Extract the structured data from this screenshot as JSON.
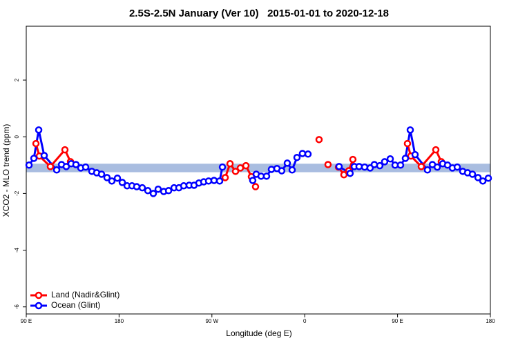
{
  "chart_data": {
    "type": "scatter",
    "title": "2.5S-2.5N January (Ver 10)   2015-01-01 to 2020-12-18",
    "x_label": "Longitude (deg E)",
    "y_label": "XCO2 - MLO trend (ppm)",
    "xlim": [
      90,
      540
    ],
    "ylim": [
      -6.25,
      3.9
    ],
    "xticks": [
      {
        "value": 90,
        "label": "90 E"
      },
      180,
      {
        "value": 270,
        "label": "90 W"
      },
      {
        "value": 360,
        "label": "0"
      },
      {
        "value": 450,
        "label": "90 E"
      },
      {
        "value": 540,
        "label": "180"
      }
    ],
    "yticks": [
      -6,
      -4,
      -2,
      0,
      2
    ],
    "band": {
      "ymin": -1.25,
      "ymax": -0.95,
      "color": "#a9bde0"
    },
    "legend": "bottom-left",
    "series": [
      {
        "name": "Land (Nadir&Glint)",
        "color": "#ff0000",
        "x": [
          99.4,
          102.7,
          113.4,
          127.5,
          132.9,
          null,
          282.9,
          287.6,
          292.9,
          297.6,
          303.0,
          308.3,
          312.3,
          null,
          373.9,
          null,
          382.6,
          null,
          392.7,
          398.0,
          402.7,
          406.7,
          null,
          459.6,
          462.9,
          473.0,
          487.1,
          492.4
        ],
        "values": [
          -0.24,
          -0.68,
          -1.05,
          -0.46,
          -0.88,
          null,
          -1.44,
          -0.95,
          -1.22,
          -1.1,
          -1.02,
          -1.41,
          -1.76,
          null,
          -0.1,
          null,
          -0.98,
          null,
          -1.07,
          -1.34,
          -1.2,
          -0.8,
          null,
          -0.24,
          -0.68,
          -1.05,
          -0.46,
          -0.88
        ]
      },
      {
        "name": "Ocean (Glint)",
        "color": "#0000ff",
        "x": [
          92.7,
          97.4,
          102.1,
          107.4,
          119.5,
          124.2,
          128.8,
          133.5,
          138.2,
          142.9,
          147.6,
          153.6,
          158.3,
          163.0,
          168.3,
          173.0,
          178.4,
          183.1,
          187.8,
          192.5,
          197.1,
          202.5,
          207.9,
          213.2,
          217.9,
          223.3,
          228.0,
          233.3,
          238.0,
          242.7,
          248.0,
          252.7,
          257.4,
          262.1,
          266.8,
          272.1,
          277.5,
          280.2,
          null,
          309.6,
          313.0,
          317.7,
          323.0,
          327.7,
          333.1,
          337.7,
          343.1,
          347.8,
          352.5,
          357.8,
          363.2,
          null,
          393.3,
          404.0,
          408.1,
          412.7,
          418.1,
          423.4,
          427.5,
          432.8,
          437.5,
          442.9,
          447.6,
          452.9,
          457.6,
          462.3,
          467.0,
          479.0,
          483.8,
          488.5,
          493.8,
          498.5,
          503.2,
          507.9,
          513.2,
          517.9,
          522.6,
          528.0,
          532.7,
          538.0
        ],
        "values": [
          -1.0,
          -0.76,
          0.24,
          -0.66,
          -1.17,
          -0.98,
          -1.05,
          -0.95,
          -0.98,
          -1.1,
          -1.07,
          -1.22,
          -1.27,
          -1.32,
          -1.44,
          -1.56,
          -1.46,
          -1.61,
          -1.73,
          -1.73,
          -1.76,
          -1.8,
          -1.9,
          -2.0,
          -1.85,
          -1.93,
          -1.9,
          -1.8,
          -1.8,
          -1.73,
          -1.71,
          -1.71,
          -1.63,
          -1.59,
          -1.56,
          -1.54,
          -1.56,
          -1.07,
          null,
          -1.54,
          -1.32,
          -1.39,
          -1.39,
          -1.15,
          -1.12,
          -1.2,
          -0.93,
          -1.17,
          -0.73,
          -0.59,
          -0.61,
          null,
          -1.05,
          -1.29,
          -1.05,
          -1.05,
          -1.07,
          -1.1,
          -0.98,
          -1.02,
          -0.88,
          -0.78,
          -1.0,
          -1.0,
          -0.76,
          0.24,
          -0.63,
          -1.17,
          -0.98,
          -1.07,
          -0.95,
          -1.0,
          -1.1,
          -1.07,
          -1.22,
          -1.27,
          -1.32,
          -1.44,
          -1.56,
          -1.46
        ]
      }
    ]
  }
}
